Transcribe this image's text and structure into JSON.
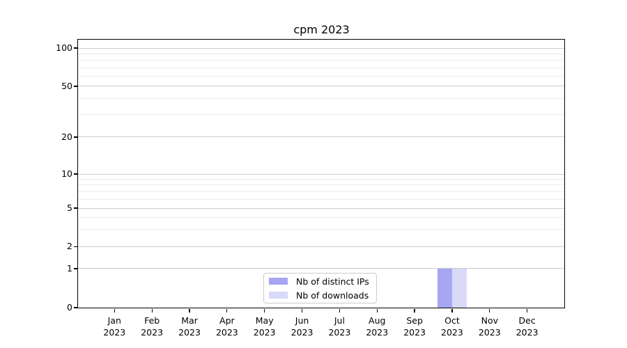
{
  "chart_data": {
    "type": "bar",
    "title": "cpm 2023",
    "categories": [
      "Jan",
      "Feb",
      "Mar",
      "Apr",
      "May",
      "Jun",
      "Jul",
      "Aug",
      "Sep",
      "Oct",
      "Nov",
      "Dec"
    ],
    "x_tick_year": "2023",
    "series": [
      {
        "name": "Nb of distinct IPs",
        "color": "#a6a6f2",
        "values": [
          0,
          0,
          0,
          0,
          0,
          0,
          0,
          0,
          0,
          1,
          0,
          0
        ]
      },
      {
        "name": "Nb of downloads",
        "color": "#d9d9fa",
        "values": [
          0,
          0,
          0,
          0,
          0,
          0,
          0,
          0,
          0,
          1,
          0,
          0
        ]
      }
    ],
    "y_axis": {
      "ticks": [
        0,
        1,
        2,
        5,
        10,
        20,
        50,
        100
      ],
      "minor_gridlines": [
        3,
        4,
        6,
        7,
        8,
        9,
        30,
        40,
        60,
        70,
        80,
        90
      ],
      "range": [
        0,
        100
      ],
      "scale": "symlog"
    },
    "legend": {
      "position": "lower center",
      "entries": [
        "Nb of distinct IPs",
        "Nb of downloads"
      ]
    },
    "grid": {
      "major_color": "#cccccc",
      "minor_color": "#ebebeb"
    }
  }
}
